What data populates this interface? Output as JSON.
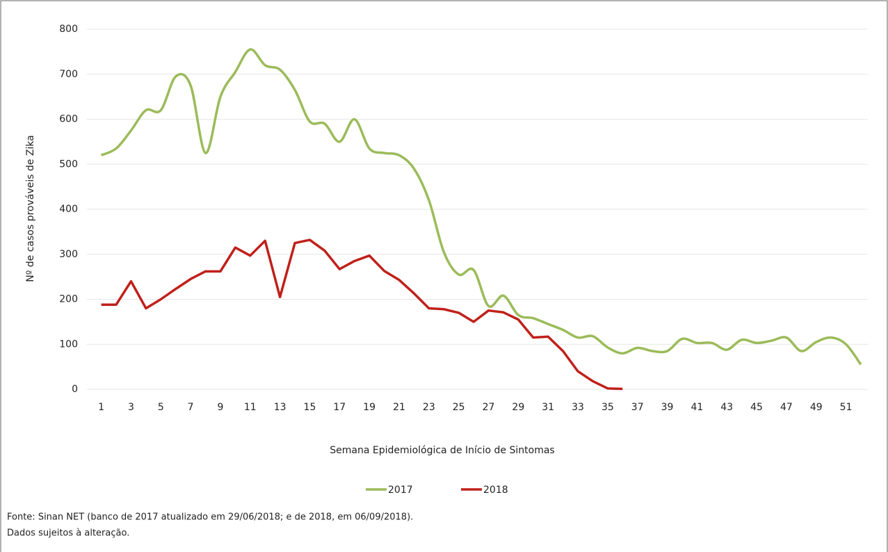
{
  "chart_data": {
    "type": "line",
    "y_label": "Nº de casos prováveis de Zika",
    "x_label": "Semana Epidemiológica de Início de Sintomas",
    "categories": [
      "1",
      null,
      "3",
      null,
      "5",
      null,
      "7",
      null,
      "9",
      null,
      "11",
      null,
      "13",
      null,
      "15",
      null,
      "17",
      null,
      "19",
      null,
      "21",
      null,
      "23",
      null,
      "25",
      null,
      "27",
      null,
      "29",
      null,
      "31",
      null,
      "33",
      null,
      "35",
      null,
      "37",
      null,
      "39",
      null,
      "41",
      null,
      "43",
      null,
      "45",
      null,
      "47",
      null,
      "49",
      null,
      "51",
      null
    ],
    "series": [
      {
        "name": "2017",
        "color": "#9bbb59",
        "smooth": true,
        "values": [
          520,
          535,
          575,
          620,
          620,
          695,
          675,
          525,
          650,
          705,
          755,
          720,
          710,
          665,
          595,
          590,
          550,
          600,
          535,
          525,
          520,
          490,
          420,
          305,
          255,
          265,
          185,
          208,
          165,
          158,
          145,
          132,
          115,
          118,
          93,
          80,
          92,
          85,
          85,
          112,
          103,
          103,
          88,
          110,
          103,
          108,
          115,
          85,
          105,
          115,
          100,
          55
        ]
      },
      {
        "name": "2018",
        "color": "#c0201a",
        "smooth": false,
        "values": [
          188,
          188,
          240,
          180,
          200,
          223,
          245,
          262,
          262,
          315,
          297,
          330,
          205,
          325,
          332,
          308,
          267,
          285,
          297,
          263,
          243,
          213,
          180,
          178,
          170,
          150,
          175,
          171,
          155,
          115,
          117,
          85,
          40,
          18,
          2,
          1,
          null,
          null,
          null,
          null,
          null,
          null,
          null,
          null,
          null,
          null,
          null,
          null,
          null,
          null,
          null,
          null
        ]
      }
    ],
    "ylim": [
      0,
      800
    ],
    "yticks": [
      0,
      100,
      200,
      300,
      400,
      500,
      600,
      700,
      800
    ],
    "grid": true,
    "legend": "bottom",
    "notes": [
      "Fonte: Sinan NET (banco de 2017 atualizado em 29/06/2018; e de 2018, em 06/09/2018).",
      "Dados sujeitos à alteração."
    ]
  }
}
